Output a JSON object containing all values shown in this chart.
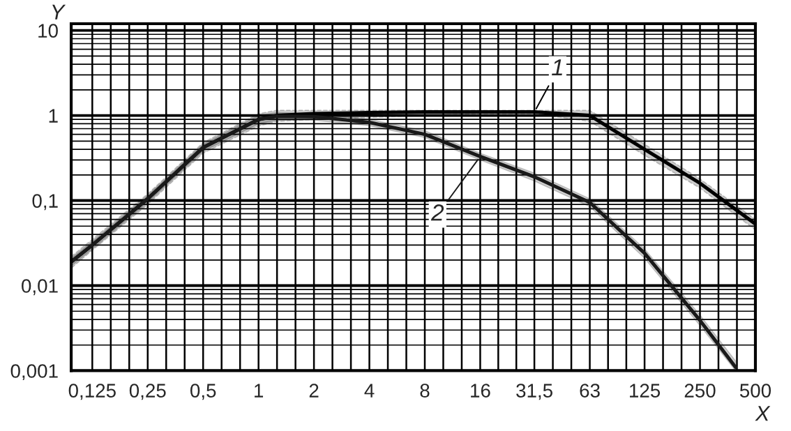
{
  "chart_data": {
    "type": "line",
    "xlabel": "X",
    "ylabel": "Y",
    "log": "xy",
    "grid": true,
    "marker": "none",
    "line_style": "solid",
    "xlim": [
      0.096,
      500
    ],
    "ylim": [
      0.001,
      12
    ],
    "xticks": [
      {
        "value": 0.125,
        "label": "0,125"
      },
      {
        "value": 0.25,
        "label": "0,25"
      },
      {
        "value": 0.5,
        "label": "0,5"
      },
      1,
      2,
      4,
      8,
      16,
      {
        "value": 31.5,
        "label": "31,5"
      },
      63,
      125,
      250,
      500
    ],
    "yticks": [
      {
        "value": 0.001,
        "label": "0,001"
      },
      {
        "value": 0.01,
        "label": "0,01"
      },
      {
        "value": 0.1,
        "label": "0,1"
      },
      1,
      10
    ],
    "series": [
      {
        "name": "1",
        "color": "#000000",
        "x": [
          0.096,
          0.125,
          0.25,
          0.5,
          1,
          1.25,
          2,
          4,
          8,
          16,
          31.5,
          63,
          125,
          250,
          500
        ],
        "values": [
          0.019,
          0.03,
          0.105,
          0.42,
          0.9,
          1.0,
          1.05,
          1.08,
          1.1,
          1.1,
          1.1,
          1.0,
          0.4,
          0.16,
          0.053
        ],
        "lower": [
          0.016,
          0.026,
          0.09,
          0.36,
          0.75,
          0.85,
          0.9,
          0.95,
          1.0,
          1.05,
          1.05,
          0.85,
          0.34,
          0.14,
          0.045
        ],
        "upper": [
          0.022,
          0.035,
          0.12,
          0.48,
          1.05,
          1.15,
          1.15,
          1.15,
          1.15,
          1.15,
          1.15,
          1.15,
          0.46,
          0.18,
          0.06
        ]
      },
      {
        "name": "2",
        "color": "#1a1a1a",
        "x": [
          0.096,
          0.125,
          0.25,
          0.5,
          1,
          1.25,
          2,
          4,
          8,
          16,
          31.5,
          63,
          125,
          250,
          390
        ],
        "values": [
          0.019,
          0.03,
          0.105,
          0.42,
          0.9,
          0.98,
          0.97,
          0.83,
          0.6,
          0.33,
          0.19,
          0.095,
          0.024,
          0.0039,
          0.0011
        ],
        "lower": [
          0.017,
          0.027,
          0.095,
          0.38,
          0.8,
          0.88,
          0.88,
          0.76,
          0.55,
          0.3,
          0.17,
          0.085,
          0.021,
          0.0034,
          0.001
        ],
        "upper": [
          0.021,
          0.033,
          0.115,
          0.46,
          1.0,
          1.08,
          1.06,
          0.9,
          0.66,
          0.36,
          0.21,
          0.105,
          0.027,
          0.0045,
          0.0013
        ]
      }
    ]
  }
}
